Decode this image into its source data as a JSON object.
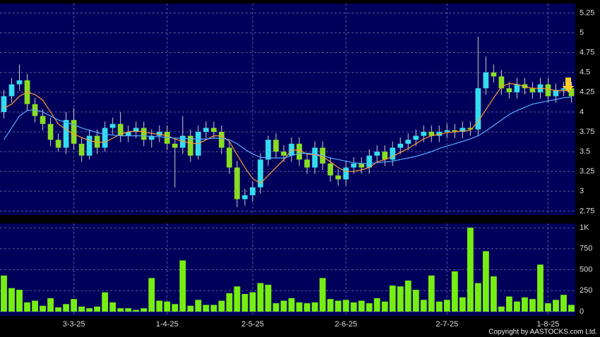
{
  "chart_data": {
    "type": "candlestick",
    "categories": [
      null,
      null,
      null,
      null,
      null,
      null,
      null,
      null,
      null,
      "3-3-25",
      null,
      null,
      null,
      null,
      null,
      null,
      null,
      null,
      null,
      null,
      null,
      "1-4-25",
      null,
      null,
      null,
      null,
      null,
      null,
      null,
      null,
      null,
      null,
      "2-5-25",
      null,
      null,
      null,
      null,
      null,
      null,
      null,
      null,
      null,
      null,
      null,
      "2-6-25",
      null,
      null,
      null,
      null,
      null,
      null,
      null,
      null,
      null,
      null,
      null,
      null,
      "2-7-25",
      null,
      null,
      null,
      null,
      null,
      null,
      null,
      null,
      null,
      null,
      null,
      null,
      "1-8-25",
      null,
      null,
      null
    ],
    "open": [
      4.0,
      4.2,
      4.35,
      4.4,
      4.1,
      3.95,
      3.85,
      3.65,
      3.55,
      3.9,
      3.6,
      3.45,
      3.7,
      3.55,
      3.8,
      3.85,
      3.7,
      3.75,
      3.8,
      3.65,
      3.7,
      3.75,
      3.6,
      3.55,
      3.7,
      3.45,
      3.75,
      3.8,
      3.75,
      3.55,
      3.3,
      2.9,
      2.95,
      3.05,
      3.4,
      3.65,
      3.5,
      3.45,
      3.6,
      3.4,
      3.3,
      3.55,
      3.35,
      3.2,
      3.15,
      3.3,
      3.35,
      3.3,
      3.45,
      3.5,
      3.4,
      3.55,
      3.6,
      3.65,
      3.7,
      3.75,
      3.7,
      3.75,
      3.77,
      3.75,
      3.8,
      3.78,
      4.3,
      4.5,
      4.45,
      4.3,
      4.25,
      4.35,
      4.3,
      4.25,
      4.35,
      4.2,
      4.28,
      4.3
    ],
    "high": [
      4.28,
      4.43,
      4.6,
      4.48,
      4.18,
      4.03,
      3.93,
      3.73,
      4.0,
      4.05,
      3.68,
      3.78,
      3.78,
      3.88,
      3.93,
      4.0,
      3.83,
      3.88,
      3.88,
      3.78,
      3.83,
      3.83,
      3.68,
      3.95,
      3.78,
      3.83,
      3.88,
      3.88,
      3.83,
      3.63,
      3.38,
      3.03,
      3.13,
      3.48,
      3.7,
      3.73,
      3.58,
      3.68,
      3.68,
      3.48,
      3.63,
      3.63,
      3.43,
      3.28,
      3.38,
      3.43,
      3.43,
      3.53,
      3.58,
      3.58,
      3.63,
      3.68,
      3.73,
      3.78,
      3.83,
      3.83,
      3.83,
      3.85,
      3.85,
      3.88,
      3.88,
      4.95,
      4.7,
      4.6,
      4.53,
      4.38,
      4.43,
      4.43,
      4.38,
      4.43,
      4.43,
      4.36,
      4.38,
      4.38
    ],
    "low": [
      3.92,
      4.12,
      4.27,
      4.02,
      3.87,
      3.77,
      3.57,
      3.5,
      3.47,
      3.52,
      3.37,
      3.4,
      3.47,
      3.5,
      3.72,
      3.62,
      3.62,
      3.67,
      3.57,
      3.55,
      3.62,
      3.52,
      3.05,
      3.47,
      3.37,
      3.4,
      3.67,
      3.67,
      3.47,
      3.22,
      2.8,
      2.82,
      2.87,
      2.97,
      3.32,
      3.42,
      3.37,
      3.37,
      3.32,
      3.22,
      3.22,
      3.27,
      3.12,
      3.07,
      3.07,
      3.22,
      3.22,
      3.22,
      3.37,
      3.32,
      3.32,
      3.47,
      3.52,
      3.57,
      3.62,
      3.62,
      3.62,
      3.67,
      3.67,
      3.67,
      3.7,
      3.7,
      4.22,
      4.37,
      4.22,
      4.17,
      4.17,
      4.22,
      4.17,
      4.17,
      4.12,
      4.12,
      4.2,
      4.12
    ],
    "close": [
      4.2,
      4.35,
      4.4,
      4.1,
      3.95,
      3.85,
      3.65,
      3.55,
      3.9,
      3.6,
      3.45,
      3.7,
      3.55,
      3.8,
      3.85,
      3.7,
      3.75,
      3.8,
      3.65,
      3.7,
      3.75,
      3.6,
      3.55,
      3.7,
      3.45,
      3.75,
      3.8,
      3.75,
      3.55,
      3.3,
      2.9,
      2.95,
      3.05,
      3.4,
      3.65,
      3.5,
      3.45,
      3.6,
      3.4,
      3.3,
      3.55,
      3.35,
      3.2,
      3.15,
      3.3,
      3.35,
      3.3,
      3.45,
      3.5,
      3.4,
      3.55,
      3.6,
      3.65,
      3.7,
      3.75,
      3.7,
      3.75,
      3.77,
      3.75,
      3.8,
      3.78,
      4.3,
      4.5,
      4.45,
      4.3,
      4.25,
      4.35,
      4.3,
      4.25,
      4.35,
      4.2,
      4.28,
      4.3,
      4.2
    ],
    "up_color": "#33ddee",
    "down_color": "#88dd22",
    "series": [
      {
        "color": "#ff9933",
        "values": [
          4.05,
          4.1,
          4.2,
          4.25,
          4.22,
          4.15,
          4.0,
          3.85,
          3.78,
          3.72,
          3.68,
          3.64,
          3.62,
          3.62,
          3.67,
          3.72,
          3.75,
          3.76,
          3.75,
          3.73,
          3.72,
          3.7,
          3.66,
          3.63,
          3.61,
          3.6,
          3.65,
          3.7,
          3.7,
          3.63,
          3.46,
          3.3,
          3.16,
          3.1,
          3.2,
          3.3,
          3.4,
          3.52,
          3.52,
          3.47,
          3.46,
          3.44,
          3.37,
          3.3,
          3.25,
          3.25,
          3.27,
          3.3,
          3.37,
          3.4,
          3.44,
          3.49,
          3.54,
          3.6,
          3.66,
          3.7,
          3.72,
          3.74,
          3.75,
          3.76,
          3.77,
          3.88,
          4.03,
          4.18,
          4.32,
          4.36,
          4.35,
          4.32,
          4.3,
          4.3,
          4.29,
          4.27,
          4.27,
          4.27
        ]
      },
      {
        "color": "#55aaff",
        "values": [
          3.65,
          3.8,
          3.95,
          4.02,
          4.03,
          4.0,
          3.95,
          3.9,
          3.87,
          3.84,
          3.8,
          3.77,
          3.74,
          3.72,
          3.71,
          3.7,
          3.7,
          3.7,
          3.7,
          3.69,
          3.69,
          3.68,
          3.67,
          3.67,
          3.66,
          3.66,
          3.66,
          3.67,
          3.67,
          3.65,
          3.6,
          3.53,
          3.47,
          3.43,
          3.42,
          3.42,
          3.42,
          3.45,
          3.48,
          3.48,
          3.47,
          3.45,
          3.42,
          3.4,
          3.38,
          3.36,
          3.35,
          3.35,
          3.36,
          3.37,
          3.38,
          3.4,
          3.42,
          3.44,
          3.47,
          3.5,
          3.54,
          3.57,
          3.6,
          3.63,
          3.66,
          3.7,
          3.76,
          3.83,
          3.9,
          3.97,
          4.02,
          4.06,
          4.1,
          4.12,
          4.14,
          4.16,
          4.18,
          4.19
        ]
      }
    ],
    "ylim": [
      2.7,
      5.37
    ],
    "yticks": [
      2.75,
      3,
      3.25,
      3.5,
      3.75,
      4,
      4.25,
      4.5,
      4.75,
      5,
      5.25
    ],
    "volume": [
      430,
      280,
      260,
      110,
      130,
      70,
      160,
      50,
      90,
      150,
      60,
      40,
      60,
      230,
      110,
      40,
      40,
      20,
      40,
      400,
      130,
      120,
      90,
      610,
      70,
      140,
      80,
      80,
      130,
      220,
      300,
      210,
      230,
      340,
      320,
      100,
      130,
      160,
      110,
      100,
      110,
      400,
      150,
      130,
      140,
      110,
      130,
      100,
      160,
      120,
      310,
      300,
      370,
      260,
      140,
      430,
      120,
      140,
      480,
      170,
      1000,
      340,
      720,
      420,
      60,
      180,
      120,
      170,
      150,
      560,
      100,
      140,
      200,
      80
    ],
    "volume_color": "#77ee11",
    "volume_ylim": [
      0,
      1050
    ],
    "volume_yticks": [
      0,
      250,
      500,
      750,
      {
        "value": 1000,
        "label": "1K"
      }
    ],
    "grid": true,
    "copyright": "Copyright by AASTOCKS.com Ltd."
  }
}
